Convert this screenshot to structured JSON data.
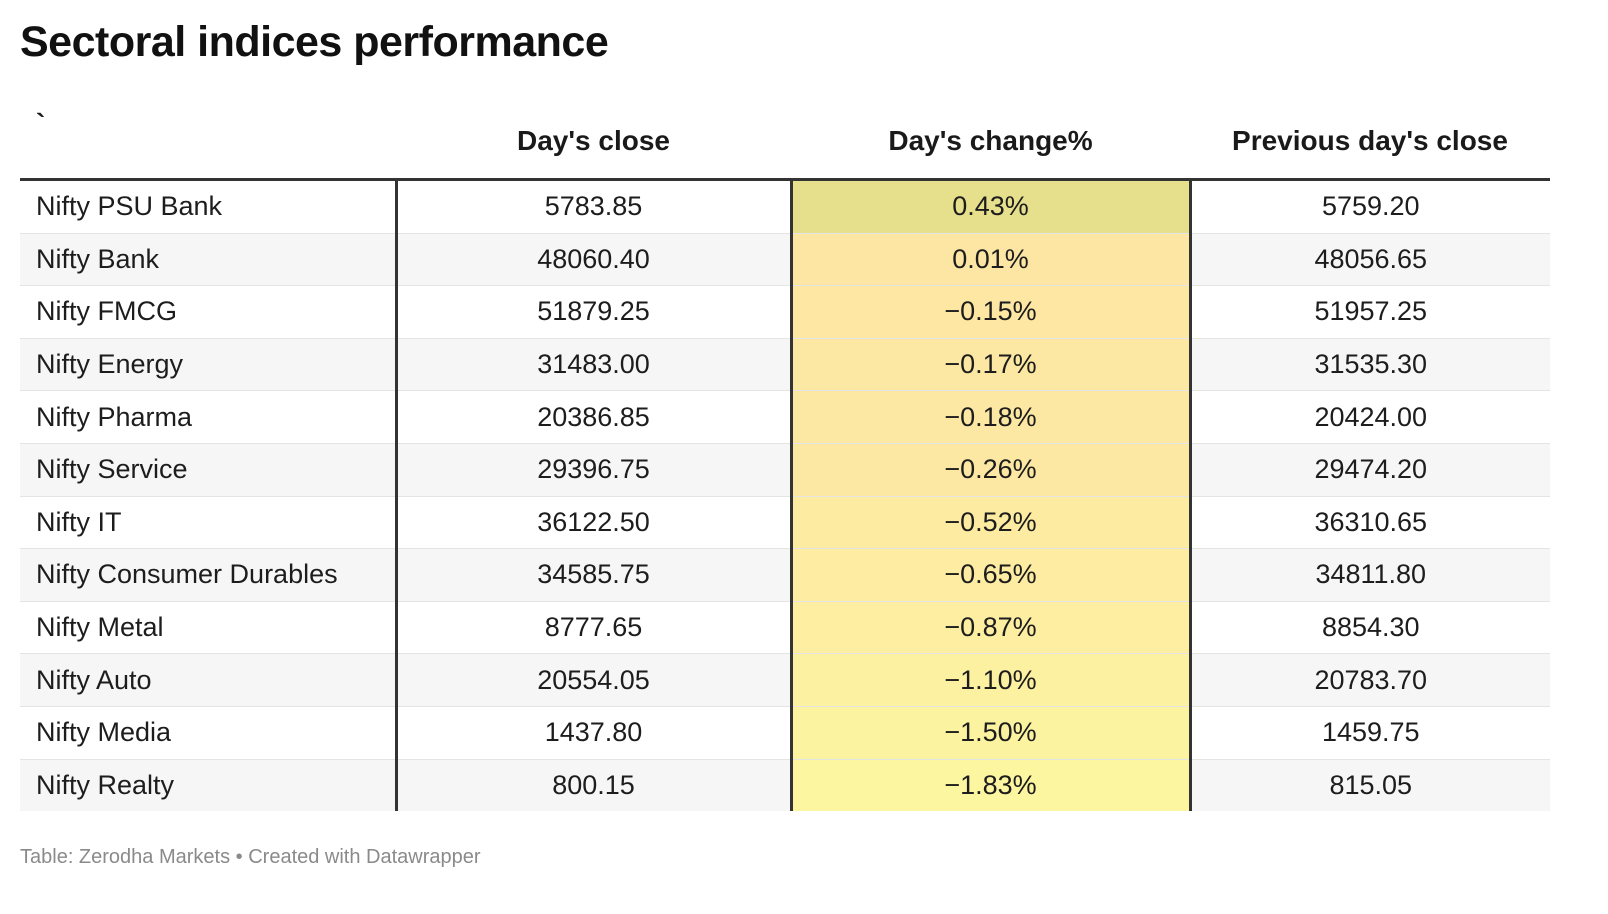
{
  "title": "Sectoral indices performance",
  "footer": "Table: Zerodha Markets • Created with Datawrapper",
  "colors": {
    "heat_high": "#e6e08c",
    "heat_mid": "#fde6a3",
    "heat_low": "#fcf6a0",
    "divider": "#333333"
  },
  "chart_data": {
    "type": "table",
    "title": "Sectoral indices performance",
    "columns": [
      "`",
      "Day's close",
      "Day's change%",
      "Previous day's close"
    ],
    "rows": [
      {
        "name": "Nifty PSU Bank",
        "close": "5783.85",
        "change": "0.43%",
        "prev": "5759.20",
        "change_value": 0.43
      },
      {
        "name": "Nifty Bank",
        "close": "48060.40",
        "change": "0.01%",
        "prev": "48056.65",
        "change_value": 0.01
      },
      {
        "name": "Nifty FMCG",
        "close": "51879.25",
        "change": "−0.15%",
        "prev": "51957.25",
        "change_value": -0.15
      },
      {
        "name": "Nifty Energy",
        "close": "31483.00",
        "change": "−0.17%",
        "prev": "31535.30",
        "change_value": -0.17
      },
      {
        "name": "Nifty Pharma",
        "close": "20386.85",
        "change": "−0.18%",
        "prev": "20424.00",
        "change_value": -0.18
      },
      {
        "name": "Nifty Service",
        "close": "29396.75",
        "change": "−0.26%",
        "prev": "29474.20",
        "change_value": -0.26
      },
      {
        "name": "Nifty IT",
        "close": "36122.50",
        "change": "−0.52%",
        "prev": "36310.65",
        "change_value": -0.52
      },
      {
        "name": "Nifty Consumer Durables",
        "close": "34585.75",
        "change": "−0.65%",
        "prev": "34811.80",
        "change_value": -0.65
      },
      {
        "name": "Nifty Metal",
        "close": "8777.65",
        "change": "−0.87%",
        "prev": "8854.30",
        "change_value": -0.87
      },
      {
        "name": "Nifty Auto",
        "close": "20554.05",
        "change": "−1.10%",
        "prev": "20783.70",
        "change_value": -1.1
      },
      {
        "name": "Nifty Media",
        "close": "1437.80",
        "change": "−1.50%",
        "prev": "1459.75",
        "change_value": -1.5
      },
      {
        "name": "Nifty Realty",
        "close": "800.15",
        "change": "−1.83%",
        "prev": "815.05",
        "change_value": -1.83
      }
    ]
  }
}
